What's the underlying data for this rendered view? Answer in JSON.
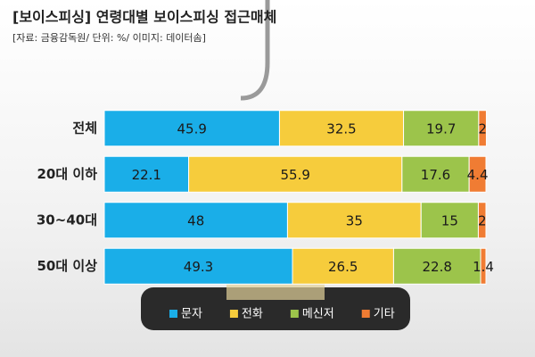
{
  "chart_data": {
    "type": "stacked-bar-horizontal",
    "title": "[보이스피싱] 연령대별 보이스피싱 접근매체",
    "subtitle": "[자료: 금융감독원/ 단위: %/ 이미지: 데이터솜]",
    "categories": [
      "전체",
      "20대 이하",
      "30~40대",
      "50대 이상"
    ],
    "series": [
      {
        "name": "문자",
        "color": "#1aaee8",
        "values": [
          45.9,
          22.1,
          48,
          49.3
        ]
      },
      {
        "name": "전화",
        "color": "#f6cc3c",
        "values": [
          32.5,
          55.9,
          35,
          26.5
        ]
      },
      {
        "name": "메신저",
        "color": "#9cc44b",
        "values": [
          19.7,
          17.6,
          15,
          22.8
        ]
      },
      {
        "name": "기타",
        "color": "#f07c33",
        "values": [
          2,
          4.4,
          2,
          1.4
        ]
      }
    ],
    "xlim": [
      0,
      100
    ]
  }
}
